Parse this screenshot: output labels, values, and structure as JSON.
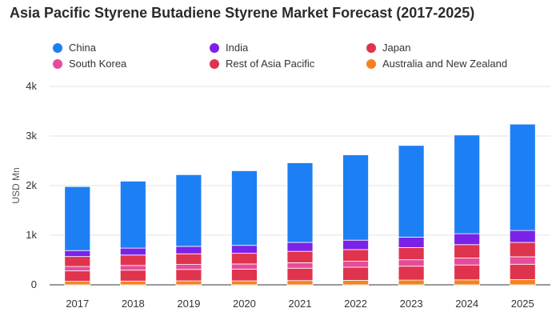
{
  "chart_data": {
    "type": "bar",
    "stacked": true,
    "title": "Asia Pacific Styrene Butadiene Styrene Market Forecast (2017-2025)",
    "ylabel": "USD Mn",
    "xlabel": "",
    "categories": [
      "2017",
      "2018",
      "2019",
      "2020",
      "2021",
      "2022",
      "2023",
      "2024",
      "2025"
    ],
    "ylim": [
      0,
      4000
    ],
    "yticks": [
      0,
      1000,
      2000,
      3000,
      4000
    ],
    "ytick_labels": [
      "0",
      "1k",
      "2k",
      "3k",
      "4k"
    ],
    "grid": true,
    "legend_position": "top",
    "series": [
      {
        "name": "Australia and New Zealand",
        "color": "#f5821f",
        "values": [
          70,
          75,
          80,
          80,
          85,
          90,
          95,
          100,
          105
        ]
      },
      {
        "name": "Rest of Asia Pacific",
        "color": "#e0334d",
        "values": [
          210,
          220,
          230,
          235,
          250,
          265,
          280,
          300,
          310
        ]
      },
      {
        "name": "South Korea",
        "color": "#e54c9a",
        "values": [
          90,
          95,
          100,
          105,
          110,
          120,
          130,
          140,
          150
        ]
      },
      {
        "name": "Japan",
        "color": "#e0334d",
        "values": [
          200,
          210,
          215,
          215,
          230,
          235,
          245,
          270,
          290
        ]
      },
      {
        "name": "India",
        "color": "#7b22e8",
        "values": [
          120,
          140,
          150,
          160,
          180,
          190,
          210,
          220,
          240
        ]
      },
      {
        "name": "China",
        "color": "#1d7ff4",
        "values": [
          1290,
          1350,
          1445,
          1505,
          1605,
          1720,
          1850,
          1990,
          2145
        ]
      }
    ]
  },
  "legend": [
    {
      "name": "China",
      "color": "#1d7ff4"
    },
    {
      "name": "India",
      "color": "#7b22e8"
    },
    {
      "name": "Japan",
      "color": "#e0334d"
    },
    {
      "name": "South Korea",
      "color": "#e54c9a"
    },
    {
      "name": "Rest of Asia Pacific",
      "color": "#e0334d"
    },
    {
      "name": "Australia and New Zealand",
      "color": "#f5821f"
    }
  ]
}
